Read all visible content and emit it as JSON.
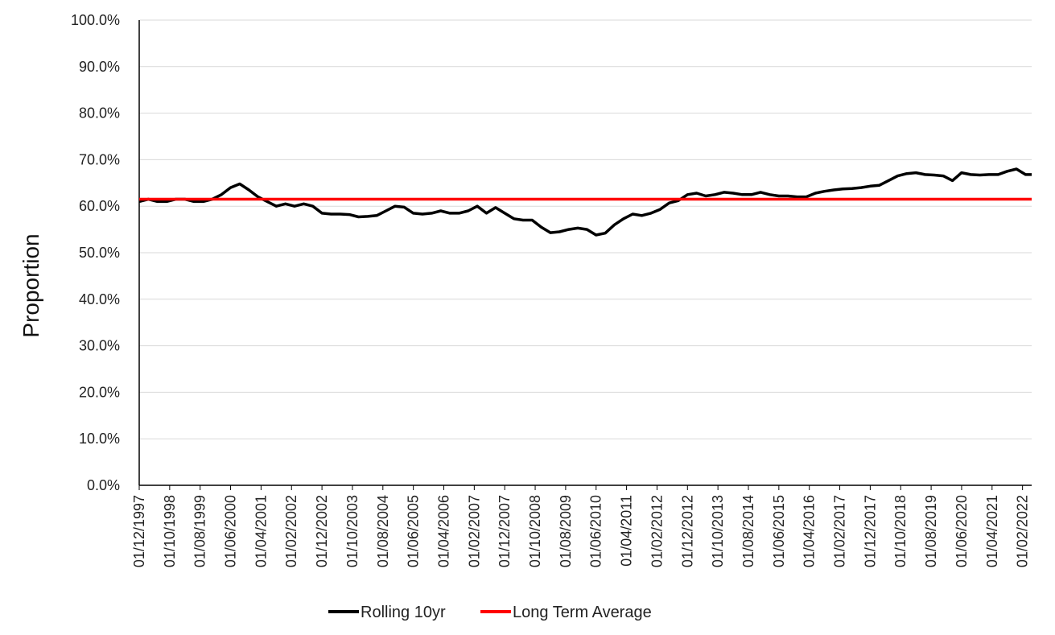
{
  "chart_data": {
    "type": "line",
    "title": "",
    "xlabel": "",
    "ylabel": "Proportion",
    "ylim": [
      0,
      1
    ],
    "y_ticks": [
      "0.0%",
      "10.0%",
      "20.0%",
      "30.0%",
      "40.0%",
      "50.0%",
      "60.0%",
      "70.0%",
      "80.0%",
      "90.0%",
      "100.0%"
    ],
    "x_ticks": [
      "01/12/1997",
      "01/10/1998",
      "01/08/1999",
      "01/06/2000",
      "01/04/2001",
      "01/02/2002",
      "01/12/2002",
      "01/10/2003",
      "01/08/2004",
      "01/06/2005",
      "01/04/2006",
      "01/02/2007",
      "01/12/2007",
      "01/10/2008",
      "01/08/2009",
      "01/06/2010",
      "01/04/2011",
      "01/02/2012",
      "01/12/2012",
      "01/10/2013",
      "01/08/2014",
      "01/06/2015",
      "01/04/2016",
      "01/02/2017",
      "01/12/2017",
      "01/10/2018",
      "01/08/2019",
      "01/06/2020",
      "01/04/2021",
      "01/02/2022"
    ],
    "x_range": [
      "1997-12",
      "2022-05"
    ],
    "grid": "horizontal",
    "legend_position": "bottom",
    "series": [
      {
        "name": "Rolling 10yr",
        "color": "#000000",
        "points": [
          [
            "1997-12",
            0.61
          ],
          [
            "1998-03",
            0.615
          ],
          [
            "1998-06",
            0.61
          ],
          [
            "1998-09",
            0.61
          ],
          [
            "1998-12",
            0.615
          ],
          [
            "1999-03",
            0.615
          ],
          [
            "1999-06",
            0.61
          ],
          [
            "1999-09",
            0.61
          ],
          [
            "1999-12",
            0.615
          ],
          [
            "2000-03",
            0.625
          ],
          [
            "2000-06",
            0.64
          ],
          [
            "2000-09",
            0.648
          ],
          [
            "2000-12",
            0.635
          ],
          [
            "2001-03",
            0.62
          ],
          [
            "2001-06",
            0.61
          ],
          [
            "2001-09",
            0.6
          ],
          [
            "2001-12",
            0.605
          ],
          [
            "2002-03",
            0.6
          ],
          [
            "2002-06",
            0.605
          ],
          [
            "2002-09",
            0.6
          ],
          [
            "2002-12",
            0.585
          ],
          [
            "2003-03",
            0.583
          ],
          [
            "2003-06",
            0.583
          ],
          [
            "2003-09",
            0.582
          ],
          [
            "2003-12",
            0.577
          ],
          [
            "2004-03",
            0.578
          ],
          [
            "2004-06",
            0.58
          ],
          [
            "2004-09",
            0.59
          ],
          [
            "2004-12",
            0.6
          ],
          [
            "2005-03",
            0.598
          ],
          [
            "2005-06",
            0.585
          ],
          [
            "2005-09",
            0.583
          ],
          [
            "2005-12",
            0.585
          ],
          [
            "2006-03",
            0.59
          ],
          [
            "2006-06",
            0.585
          ],
          [
            "2006-09",
            0.585
          ],
          [
            "2006-12",
            0.59
          ],
          [
            "2007-03",
            0.6
          ],
          [
            "2007-06",
            0.585
          ],
          [
            "2007-09",
            0.597
          ],
          [
            "2007-12",
            0.585
          ],
          [
            "2008-03",
            0.573
          ],
          [
            "2008-06",
            0.57
          ],
          [
            "2008-09",
            0.57
          ],
          [
            "2008-12",
            0.555
          ],
          [
            "2009-03",
            0.543
          ],
          [
            "2009-06",
            0.545
          ],
          [
            "2009-09",
            0.55
          ],
          [
            "2009-12",
            0.553
          ],
          [
            "2010-03",
            0.55
          ],
          [
            "2010-06",
            0.538
          ],
          [
            "2010-09",
            0.542
          ],
          [
            "2010-12",
            0.56
          ],
          [
            "2011-03",
            0.573
          ],
          [
            "2011-06",
            0.583
          ],
          [
            "2011-09",
            0.58
          ],
          [
            "2011-12",
            0.585
          ],
          [
            "2012-03",
            0.593
          ],
          [
            "2012-06",
            0.607
          ],
          [
            "2012-09",
            0.612
          ],
          [
            "2012-12",
            0.625
          ],
          [
            "2013-03",
            0.628
          ],
          [
            "2013-06",
            0.622
          ],
          [
            "2013-09",
            0.625
          ],
          [
            "2013-12",
            0.63
          ],
          [
            "2014-03",
            0.628
          ],
          [
            "2014-06",
            0.625
          ],
          [
            "2014-09",
            0.625
          ],
          [
            "2014-12",
            0.63
          ],
          [
            "2015-03",
            0.625
          ],
          [
            "2015-06",
            0.622
          ],
          [
            "2015-09",
            0.622
          ],
          [
            "2015-12",
            0.62
          ],
          [
            "2016-03",
            0.62
          ],
          [
            "2016-06",
            0.628
          ],
          [
            "2016-09",
            0.632
          ],
          [
            "2016-12",
            0.635
          ],
          [
            "2017-03",
            0.637
          ],
          [
            "2017-06",
            0.638
          ],
          [
            "2017-09",
            0.64
          ],
          [
            "2017-12",
            0.643
          ],
          [
            "2018-03",
            0.645
          ],
          [
            "2018-06",
            0.655
          ],
          [
            "2018-09",
            0.665
          ],
          [
            "2018-12",
            0.67
          ],
          [
            "2019-03",
            0.672
          ],
          [
            "2019-06",
            0.668
          ],
          [
            "2019-09",
            0.667
          ],
          [
            "2019-12",
            0.665
          ],
          [
            "2020-03",
            0.655
          ],
          [
            "2020-06",
            0.672
          ],
          [
            "2020-09",
            0.668
          ],
          [
            "2020-12",
            0.667
          ],
          [
            "2021-03",
            0.668
          ],
          [
            "2021-06",
            0.668
          ],
          [
            "2021-09",
            0.675
          ],
          [
            "2021-12",
            0.68
          ],
          [
            "2022-03",
            0.668
          ],
          [
            "2022-05",
            0.668
          ]
        ]
      },
      {
        "name": "Long Term Average",
        "color": "#ff0000",
        "points": [
          [
            "1997-12",
            0.615
          ],
          [
            "2022-05",
            0.615
          ]
        ]
      }
    ]
  }
}
